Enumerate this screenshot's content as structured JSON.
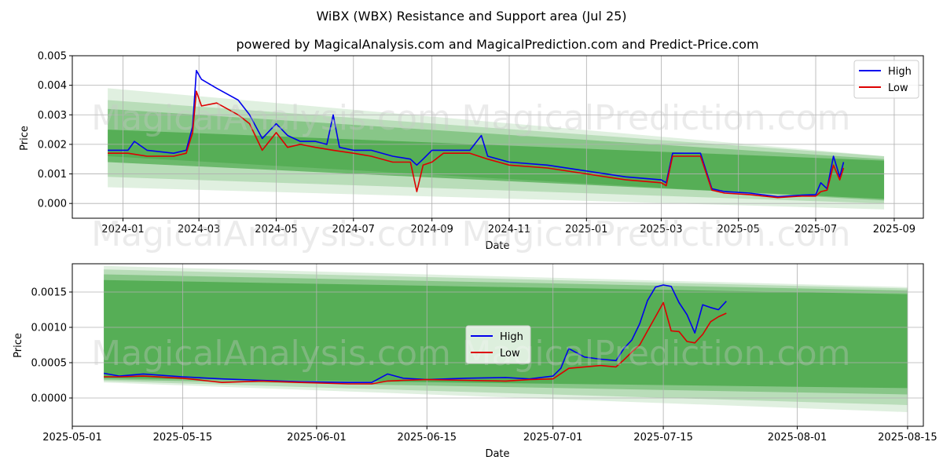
{
  "suptitle": "WiBX (WBX) Resistance and Support area (Jul 25)",
  "watermarks": [
    "MagicalAnalysis.com",
    "MagicalPrediction.com"
  ],
  "colors": {
    "high": "#0000ee",
    "low": "#dd0000",
    "band": "#2e9a2e",
    "grid": "#b0b0b0"
  },
  "chart_data": [
    {
      "type": "line",
      "title": "powered by MagicalAnalysis.com and MagicalPrediction.com and Predict-Price.com",
      "xlabel": "Date",
      "ylabel": "Price",
      "xlim": [
        "2023-11-22",
        "2025-09-24"
      ],
      "ylim": [
        -0.0005,
        0.005
      ],
      "xticks": [
        "2024-01",
        "2024-03",
        "2024-05",
        "2024-07",
        "2024-09",
        "2024-11",
        "2025-01",
        "2025-03",
        "2025-05",
        "2025-07",
        "2025-09"
      ],
      "ytick_labels": [
        "0.000",
        "0.001",
        "0.002",
        "0.003",
        "0.004",
        "0.005"
      ],
      "yticks": [
        0,
        0.001,
        0.002,
        0.003,
        0.004,
        0.005
      ],
      "legend": "top-right",
      "grid": true,
      "bands": [
        {
          "x": [
            "2023-12-20",
            "2025-08-24"
          ],
          "upper": [
            0.0039,
            0.0016
          ],
          "lower": [
            0.00055,
            -0.0002
          ],
          "opacity": 0.15
        },
        {
          "x": [
            "2023-12-20",
            "2025-08-24"
          ],
          "upper": [
            0.0035,
            0.0016
          ],
          "lower": [
            0.0009,
            0.0
          ],
          "opacity": 0.22
        },
        {
          "x": [
            "2023-12-20",
            "2025-08-24"
          ],
          "upper": [
            0.0032,
            0.0015
          ],
          "lower": [
            0.0016,
            0.0001
          ],
          "opacity": 0.35
        },
        {
          "x": [
            "2023-12-20",
            "2025-08-24"
          ],
          "upper": [
            0.0025,
            0.00145
          ],
          "lower": [
            0.0014,
            0.00015
          ],
          "opacity": 0.55
        }
      ],
      "series": [
        {
          "name": "High",
          "x": [
            "2023-12-20",
            "2024-01-05",
            "2024-01-10",
            "2024-01-20",
            "2024-02-10",
            "2024-02-20",
            "2024-02-25",
            "2024-02-28",
            "2024-03-03",
            "2024-03-15",
            "2024-04-01",
            "2024-04-10",
            "2024-04-20",
            "2024-05-01",
            "2024-05-10",
            "2024-05-20",
            "2024-06-01",
            "2024-06-10",
            "2024-06-15",
            "2024-06-20",
            "2024-07-01",
            "2024-07-15",
            "2024-08-01",
            "2024-08-15",
            "2024-08-20",
            "2024-08-25",
            "2024-09-01",
            "2024-09-10",
            "2024-10-01",
            "2024-10-10",
            "2024-10-15",
            "2024-11-01",
            "2024-12-01",
            "2025-01-01",
            "2025-02-01",
            "2025-03-01",
            "2025-03-05",
            "2025-03-10",
            "2025-03-15",
            "2025-04-01",
            "2025-04-10",
            "2025-04-20",
            "2025-05-10",
            "2025-06-01",
            "2025-06-20",
            "2025-07-01",
            "2025-07-05",
            "2025-07-10",
            "2025-07-15",
            "2025-07-20",
            "2025-07-23"
          ],
          "values": [
            0.0018,
            0.0018,
            0.0021,
            0.0018,
            0.0017,
            0.0018,
            0.0026,
            0.0045,
            0.0042,
            0.0039,
            0.0035,
            0.003,
            0.0022,
            0.0027,
            0.0023,
            0.0021,
            0.0021,
            0.002,
            0.003,
            0.0019,
            0.0018,
            0.0018,
            0.0016,
            0.0015,
            0.0013,
            0.0015,
            0.0018,
            0.0018,
            0.0018,
            0.0023,
            0.0016,
            0.0014,
            0.0013,
            0.0011,
            0.0009,
            0.0008,
            0.0007,
            0.0017,
            0.0017,
            0.0017,
            0.0005,
            0.0004,
            0.00035,
            0.00023,
            0.00028,
            0.0003,
            0.0007,
            0.0005,
            0.0016,
            0.0009,
            0.0014
          ]
        },
        {
          "name": "Low",
          "x": [
            "2023-12-20",
            "2024-01-05",
            "2024-01-20",
            "2024-02-10",
            "2024-02-20",
            "2024-02-25",
            "2024-02-28",
            "2024-03-03",
            "2024-03-15",
            "2024-04-01",
            "2024-04-10",
            "2024-04-20",
            "2024-05-01",
            "2024-05-10",
            "2024-05-20",
            "2024-06-01",
            "2024-06-15",
            "2024-07-01",
            "2024-07-15",
            "2024-08-01",
            "2024-08-15",
            "2024-08-20",
            "2024-08-25",
            "2024-09-01",
            "2024-09-10",
            "2024-10-01",
            "2024-10-15",
            "2024-11-01",
            "2024-12-01",
            "2025-01-01",
            "2025-02-01",
            "2025-03-01",
            "2025-03-05",
            "2025-03-10",
            "2025-03-15",
            "2025-04-01",
            "2025-04-10",
            "2025-04-20",
            "2025-05-10",
            "2025-06-01",
            "2025-06-20",
            "2025-07-01",
            "2025-07-05",
            "2025-07-10",
            "2025-07-15",
            "2025-07-20",
            "2025-07-23"
          ],
          "values": [
            0.0017,
            0.0017,
            0.0016,
            0.0016,
            0.0017,
            0.0024,
            0.0038,
            0.0033,
            0.0034,
            0.003,
            0.0027,
            0.0018,
            0.0024,
            0.0019,
            0.002,
            0.0019,
            0.0018,
            0.0017,
            0.0016,
            0.0014,
            0.0014,
            0.0004,
            0.0013,
            0.0014,
            0.0017,
            0.0017,
            0.0015,
            0.0013,
            0.0012,
            0.001,
            0.0008,
            0.0007,
            0.0006,
            0.0016,
            0.0016,
            0.0016,
            0.00045,
            0.00035,
            0.0003,
            0.0002,
            0.00025,
            0.00025,
            0.0004,
            0.00045,
            0.0013,
            0.0008,
            0.0012
          ]
        }
      ]
    },
    {
      "type": "line",
      "xlabel": "Date",
      "ylabel": "Price",
      "xlim": [
        "2025-05-01",
        "2025-08-17"
      ],
      "ylim": [
        -0.0004,
        0.0019
      ],
      "xticks": [
        "2025-05-01",
        "2025-05-15",
        "2025-06-01",
        "2025-06-15",
        "2025-07-01",
        "2025-07-15",
        "2025-08-01",
        "2025-08-15"
      ],
      "ytick_labels": [
        "0.0000",
        "0.0005",
        "0.0010",
        "0.0015"
      ],
      "yticks": [
        0,
        0.0005,
        0.001,
        0.0015
      ],
      "legend": "center",
      "grid": true,
      "bands": [
        {
          "x": [
            "2025-05-05",
            "2025-08-15"
          ],
          "upper": [
            0.00187,
            0.00157
          ],
          "lower": [
            0.00022,
            -0.0002
          ],
          "opacity": 0.15
        },
        {
          "x": [
            "2025-05-05",
            "2025-08-15"
          ],
          "upper": [
            0.00182,
            0.00155
          ],
          "lower": [
            0.00024,
            -0.0001
          ],
          "opacity": 0.22
        },
        {
          "x": [
            "2025-05-05",
            "2025-08-15"
          ],
          "upper": [
            0.00175,
            0.00152
          ],
          "lower": [
            0.00026,
            5e-05
          ],
          "opacity": 0.35
        },
        {
          "x": [
            "2025-05-05",
            "2025-08-15"
          ],
          "upper": [
            0.00167,
            0.00147
          ],
          "lower": [
            0.00028,
            0.00014
          ],
          "opacity": 0.55
        }
      ],
      "series": [
        {
          "name": "High",
          "x": [
            "2025-05-05",
            "2025-05-07",
            "2025-05-10",
            "2025-05-15",
            "2025-05-20",
            "2025-05-25",
            "2025-05-30",
            "2025-06-05",
            "2025-06-08",
            "2025-06-10",
            "2025-06-12",
            "2025-06-15",
            "2025-06-20",
            "2025-06-25",
            "2025-06-28",
            "2025-07-01",
            "2025-07-02",
            "2025-07-03",
            "2025-07-05",
            "2025-07-07",
            "2025-07-09",
            "2025-07-10",
            "2025-07-11",
            "2025-07-12",
            "2025-07-13",
            "2025-07-14",
            "2025-07-15",
            "2025-07-16",
            "2025-07-17",
            "2025-07-18",
            "2025-07-19",
            "2025-07-20",
            "2025-07-21",
            "2025-07-22",
            "2025-07-23"
          ],
          "values": [
            0.00035,
            0.00031,
            0.00034,
            0.0003,
            0.00027,
            0.00025,
            0.00023,
            0.00022,
            0.00022,
            0.00034,
            0.00028,
            0.00026,
            0.00028,
            0.00029,
            0.00027,
            0.00031,
            0.00042,
            0.0007,
            0.00058,
            0.00055,
            0.00053,
            0.0007,
            0.00082,
            0.00105,
            0.00138,
            0.00157,
            0.0016,
            0.00158,
            0.00135,
            0.00118,
            0.00092,
            0.00132,
            0.00128,
            0.00125,
            0.00137
          ]
        },
        {
          "name": "Low",
          "x": [
            "2025-05-05",
            "2025-05-07",
            "2025-05-10",
            "2025-05-15",
            "2025-05-20",
            "2025-05-25",
            "2025-05-30",
            "2025-06-05",
            "2025-06-08",
            "2025-06-10",
            "2025-06-12",
            "2025-06-15",
            "2025-06-20",
            "2025-06-25",
            "2025-06-28",
            "2025-07-01",
            "2025-07-03",
            "2025-07-05",
            "2025-07-07",
            "2025-07-09",
            "2025-07-10",
            "2025-07-11",
            "2025-07-12",
            "2025-07-13",
            "2025-07-14",
            "2025-07-15",
            "2025-07-16",
            "2025-07-17",
            "2025-07-18",
            "2025-07-19",
            "2025-07-20",
            "2025-07-21",
            "2025-07-22",
            "2025-07-23"
          ],
          "values": [
            0.0003,
            0.0003,
            0.00031,
            0.00028,
            0.00022,
            0.00024,
            0.00022,
            0.0002,
            0.0002,
            0.00024,
            0.00025,
            0.00026,
            0.00025,
            0.00024,
            0.00026,
            0.00027,
            0.00042,
            0.00044,
            0.00046,
            0.00044,
            0.00054,
            0.00065,
            0.00075,
            0.00095,
            0.00115,
            0.00135,
            0.00095,
            0.00094,
            0.0008,
            0.00078,
            0.0009,
            0.00108,
            0.00115,
            0.0012
          ]
        }
      ]
    }
  ]
}
